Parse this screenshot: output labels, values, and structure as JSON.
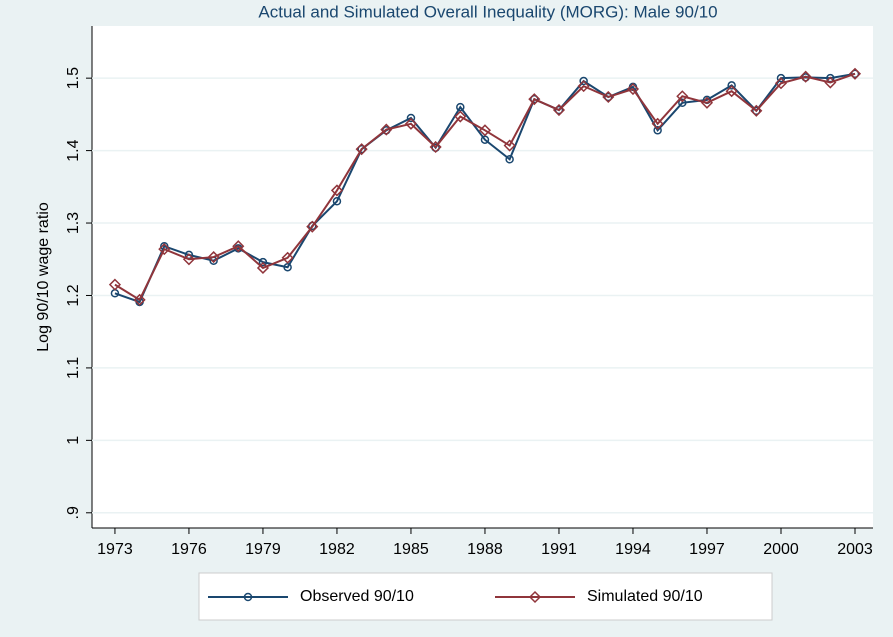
{
  "chart_data": {
    "type": "line",
    "title": "Actual and Simulated Overall Inequality (MORG): Male 90/10",
    "y_label": "Log 90/10 wage ratio",
    "x": [
      1973,
      1974,
      1975,
      1976,
      1977,
      1978,
      1979,
      1980,
      1981,
      1982,
      1983,
      1984,
      1985,
      1986,
      1987,
      1988,
      1989,
      1990,
      1991,
      1992,
      1993,
      1994,
      1995,
      1996,
      1997,
      1998,
      1999,
      2000,
      2001,
      2002,
      2003
    ],
    "series": [
      {
        "name": "Observed 90/10",
        "color": "#1a476f",
        "marker": "circle",
        "values": [
          1.203,
          1.191,
          1.268,
          1.256,
          1.248,
          1.265,
          1.246,
          1.239,
          1.296,
          1.33,
          1.402,
          1.428,
          1.445,
          1.404,
          1.46,
          1.415,
          1.388,
          1.471,
          1.456,
          1.496,
          1.474,
          1.488,
          1.428,
          1.466,
          1.47,
          1.49,
          1.455,
          1.5,
          1.501,
          1.5,
          1.506
        ]
      },
      {
        "name": "Simulated 90/10",
        "color": "#90353b",
        "marker": "diamond",
        "values": [
          1.215,
          1.194,
          1.264,
          1.25,
          1.253,
          1.268,
          1.238,
          1.252,
          1.295,
          1.345,
          1.402,
          1.429,
          1.437,
          1.405,
          1.447,
          1.428,
          1.407,
          1.471,
          1.456,
          1.489,
          1.474,
          1.485,
          1.437,
          1.475,
          1.466,
          1.482,
          1.455,
          1.493,
          1.502,
          1.494,
          1.506
        ]
      }
    ],
    "xlim": [
      1972.07,
      2003.73
    ],
    "xticks": [
      1973,
      1976,
      1979,
      1982,
      1985,
      1988,
      1991,
      1994,
      1997,
      2000,
      2003
    ],
    "ylim": [
      0.879,
      1.572
    ],
    "yticks": [
      {
        "value": 0.9,
        "label": ".9"
      },
      1,
      1.1,
      1.2,
      1.3,
      1.4,
      1.5
    ],
    "grid": true,
    "legend": "bottom"
  }
}
